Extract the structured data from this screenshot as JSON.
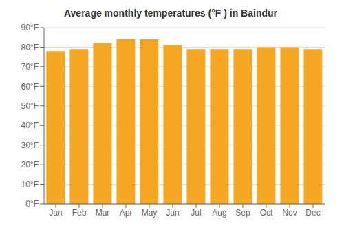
{
  "chart_data": {
    "type": "bar",
    "title": "Average monthly temperatures (°F ) in Baindur",
    "categories": [
      "Jan",
      "Feb",
      "Mar",
      "Apr",
      "May",
      "Jun",
      "Jul",
      "Aug",
      "Sep",
      "Oct",
      "Nov",
      "Dec"
    ],
    "values": [
      78,
      79,
      82,
      84,
      84,
      81,
      79,
      79,
      79,
      80,
      80,
      79
    ],
    "color": "#F5A623",
    "ylim": [
      0,
      90
    ],
    "yticks": [
      {
        "value": 0,
        "label": "0°F"
      },
      {
        "value": 10,
        "label": "10°F"
      },
      {
        "value": 20,
        "label": "20°F"
      },
      {
        "value": 30,
        "label": "30°F"
      },
      {
        "value": 40,
        "label": "40°F"
      },
      {
        "value": 50,
        "label": "50°F"
      },
      {
        "value": 60,
        "label": "60°F"
      },
      {
        "value": 70,
        "label": "70°F"
      },
      {
        "value": 80,
        "label": "80°F"
      },
      {
        "value": 90,
        "label": "90°F"
      }
    ],
    "grid": true
  }
}
